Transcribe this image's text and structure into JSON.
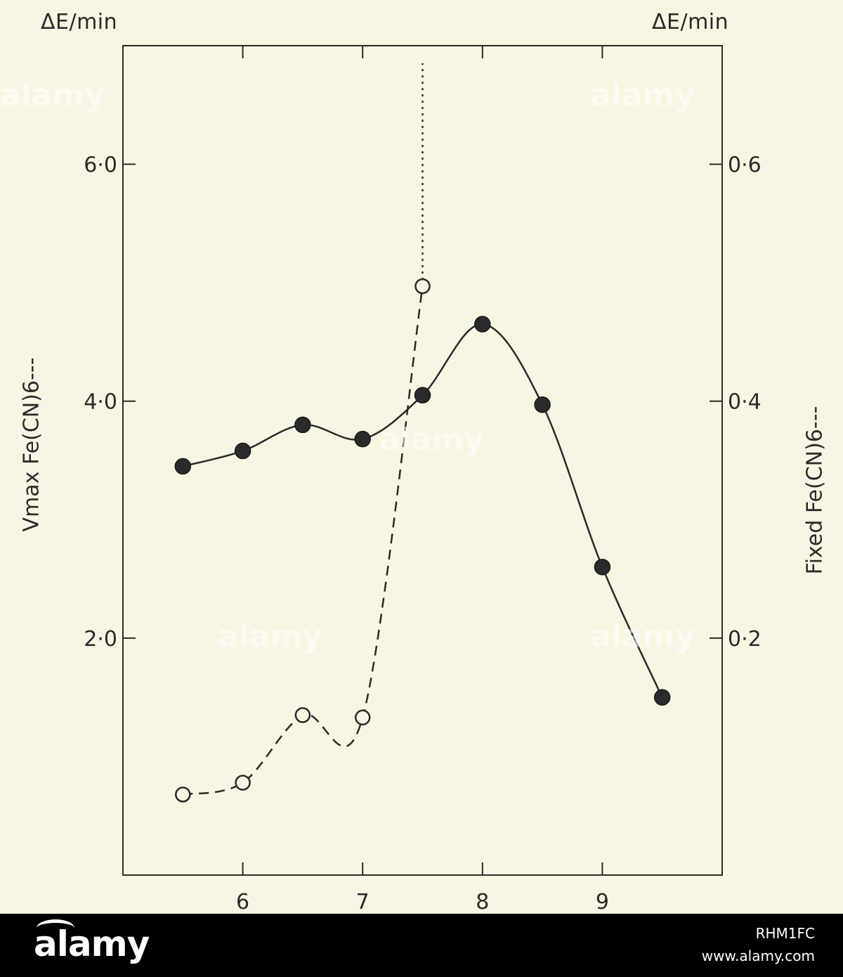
{
  "chart_data": {
    "type": "line",
    "x": [
      5.5,
      6,
      6.5,
      7,
      7.5,
      8,
      8.5,
      9,
      9.5
    ],
    "x_ticks": [
      "6",
      "7",
      "8",
      "9"
    ],
    "xlim": [
      5.0,
      10.0
    ],
    "ylim_left": [
      0,
      7.0
    ],
    "ylim_right": [
      0,
      0.7
    ],
    "left_axis": {
      "unit": "ΔE/min",
      "label": "Vmax Fe(CN)6---",
      "ticks": [
        "2·0",
        "4·0",
        "6·0"
      ],
      "tick_values": [
        2.0,
        4.0,
        6.0
      ]
    },
    "right_axis": {
      "unit": "ΔE/min",
      "label": "Fixed Fe(CN)6---",
      "ticks": [
        "0·2",
        "0·4",
        "0·6"
      ],
      "tick_values": [
        0.2,
        0.4,
        0.6
      ]
    },
    "series": [
      {
        "axis": "left",
        "marker": "filled-circle",
        "line": "solid",
        "x": [
          5.5,
          6,
          6.5,
          7,
          7.5,
          8,
          8.5,
          9,
          9.5
        ],
        "values": [
          3.45,
          3.58,
          3.8,
          3.68,
          4.05,
          4.65,
          3.97,
          2.6,
          1.5
        ]
      },
      {
        "axis": "right",
        "marker": "open-circle",
        "line": "dashed",
        "x": [
          5.5,
          6,
          6.5,
          7,
          7.5
        ],
        "values": [
          0.068,
          0.078,
          0.135,
          0.133,
          0.497
        ],
        "vertical_dotted_at_x": 7.5
      }
    ],
    "grid": false,
    "legend": "none"
  },
  "watermark": "alamy",
  "footer": {
    "logo_text": "alamy",
    "image_id": "RHM1FC",
    "url": "www.alamy.com"
  },
  "colors": {
    "background": "#f8f5e2",
    "ink": "#2a2a2a",
    "footer": "#000000"
  }
}
